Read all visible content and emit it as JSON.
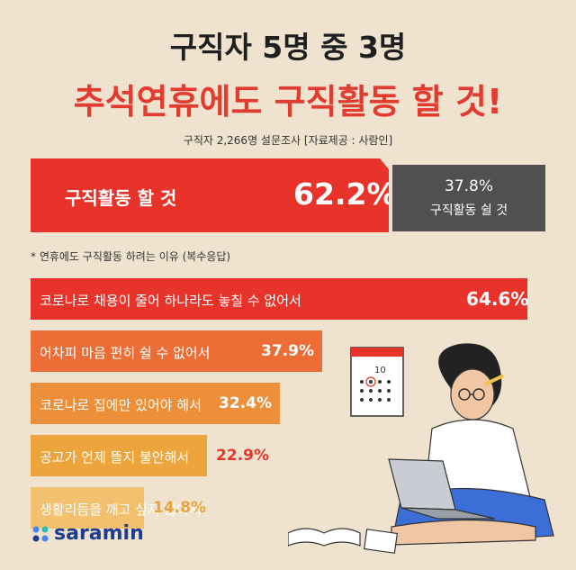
{
  "title_line1": "구직자 5명 중 3명",
  "title_line2": "추석연휴에도 구직활동 할 것!",
  "source": "구직자 2,266명 설문조사 [자료제공 : 사람인]",
  "note": "*  연휴에도 구직활동 하려는 이유 (복수응답)",
  "logo_text": "saramin",
  "colors": {
    "background": "#efe3cf",
    "primary_red": "#e8332a",
    "dark_gray": "#505050",
    "reason_colors": [
      "#e8332a",
      "#ec6e36",
      "#ed8e39",
      "#eda43c",
      "#f2c06f"
    ]
  },
  "chart_data": [
    {
      "type": "bar",
      "categories": [
        "구직활동 할 것",
        "구직활동 쉴 것"
      ],
      "values": [
        62.2,
        37.8
      ],
      "value_labels": [
        "62.2%",
        "37.8%"
      ]
    },
    {
      "type": "bar",
      "categories": [
        "코로나로 채용이 줄어 하나라도 놓칠 수 없어서",
        "어차피 마음 편히 쉴 수 없어서",
        "코로나로 집에만 있어야 해서",
        "공고가 언제 뜰지 불안해서",
        "생활리듬을 깨고 싶지 않아서"
      ],
      "values": [
        64.6,
        37.9,
        32.4,
        22.9,
        14.8
      ],
      "value_labels": [
        "64.6%",
        "37.9%",
        "32.4%",
        "22.9%",
        "14.8%"
      ]
    }
  ]
}
